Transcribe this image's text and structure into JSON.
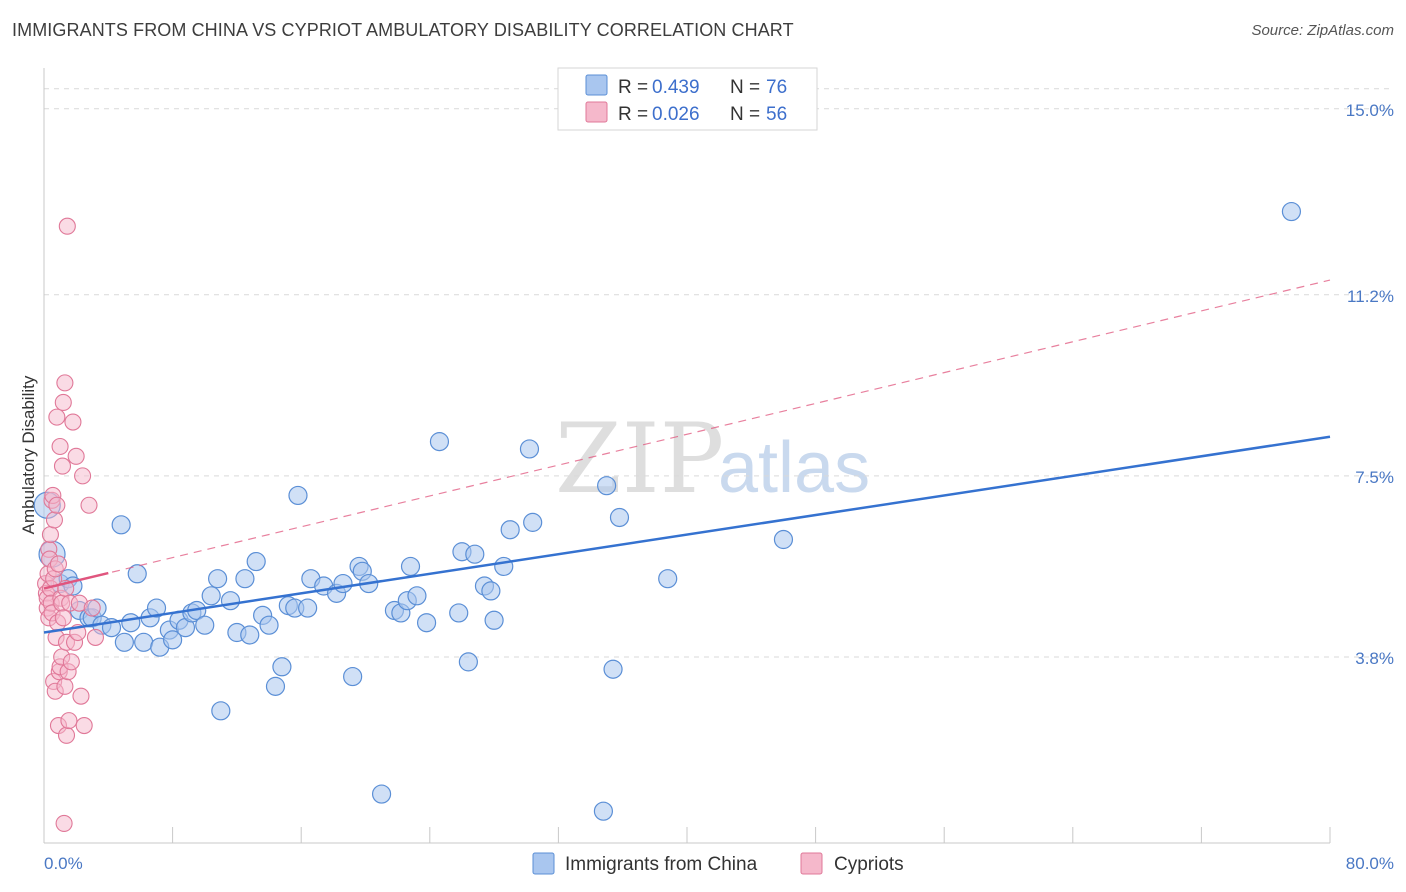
{
  "title": "IMMIGRANTS FROM CHINA VS CYPRIOT AMBULATORY DISABILITY CORRELATION CHART",
  "source": "Source: ZipAtlas.com",
  "colors": {
    "china_fill": "#a9c6ef",
    "china_stroke": "#5b8fd6",
    "china_line": "#3572d0",
    "cyp_fill": "#f5b8cb",
    "cyp_stroke": "#e07898",
    "cyp_line": "#e0557e",
    "grid": "#d9d9d9",
    "tick_text": "#4a78c4"
  },
  "chart_data": {
    "type": "scatter",
    "xlabel": "",
    "ylabel": "Ambulatory Disability",
    "xlim": [
      0,
      80
    ],
    "ylim": [
      0,
      15.5
    ],
    "x_tick_labels": [
      "0.0%",
      "80.0%"
    ],
    "y_ticks": [
      3.8,
      7.5,
      11.2,
      15.0
    ],
    "y_tick_labels": [
      "3.8%",
      "7.5%",
      "11.2%",
      "15.0%"
    ],
    "legend": [
      {
        "r_label": "R = ",
        "r_value": "0.439",
        "n_label": "N = ",
        "n_value": "76"
      },
      {
        "r_label": "R = ",
        "r_value": "0.026",
        "n_label": "N = ",
        "n_value": "56"
      }
    ],
    "watermark": {
      "zip": "ZIP",
      "atlas": "atlas"
    },
    "series": [
      {
        "name": "Immigrants from China",
        "trend": {
          "x0": 0,
          "y0": 4.3,
          "x1": 80,
          "y1": 8.3
        },
        "points": [
          [
            0.2,
            6.9
          ],
          [
            0.5,
            5.9
          ],
          [
            1.0,
            5.3
          ],
          [
            1.5,
            5.4
          ],
          [
            1.8,
            5.25
          ],
          [
            2.2,
            4.75
          ],
          [
            2.8,
            4.6
          ],
          [
            3.0,
            4.6
          ],
          [
            3.3,
            4.8
          ],
          [
            3.6,
            4.45
          ],
          [
            4.2,
            4.4
          ],
          [
            4.8,
            6.5
          ],
          [
            5.0,
            4.1
          ],
          [
            5.4,
            4.5
          ],
          [
            5.8,
            5.5
          ],
          [
            6.2,
            4.1
          ],
          [
            6.6,
            4.6
          ],
          [
            7.0,
            4.8
          ],
          [
            7.2,
            4.0
          ],
          [
            7.8,
            4.35
          ],
          [
            8.0,
            4.15
          ],
          [
            8.4,
            4.55
          ],
          [
            8.8,
            4.4
          ],
          [
            9.2,
            4.7
          ],
          [
            9.5,
            4.75
          ],
          [
            10.0,
            4.45
          ],
          [
            10.4,
            5.05
          ],
          [
            10.8,
            5.4
          ],
          [
            11.0,
            2.7
          ],
          [
            11.6,
            4.95
          ],
          [
            12.0,
            4.3
          ],
          [
            12.5,
            5.4
          ],
          [
            12.8,
            4.25
          ],
          [
            13.2,
            5.75
          ],
          [
            13.6,
            4.65
          ],
          [
            14.0,
            4.45
          ],
          [
            14.4,
            3.2
          ],
          [
            14.8,
            3.6
          ],
          [
            15.2,
            4.85
          ],
          [
            15.6,
            4.8
          ],
          [
            15.8,
            7.1
          ],
          [
            16.4,
            4.8
          ],
          [
            16.6,
            5.4
          ],
          [
            17.4,
            5.25
          ],
          [
            18.2,
            5.1
          ],
          [
            18.6,
            5.3
          ],
          [
            19.2,
            3.4
          ],
          [
            19.6,
            5.65
          ],
          [
            19.8,
            5.55
          ],
          [
            20.2,
            5.3
          ],
          [
            21.0,
            1.0
          ],
          [
            21.8,
            4.75
          ],
          [
            22.2,
            4.7
          ],
          [
            22.6,
            4.95
          ],
          [
            22.8,
            5.65
          ],
          [
            23.2,
            5.05
          ],
          [
            23.8,
            4.5
          ],
          [
            24.6,
            8.2
          ],
          [
            25.8,
            4.7
          ],
          [
            26.0,
            5.95
          ],
          [
            26.4,
            3.7
          ],
          [
            26.8,
            5.9
          ],
          [
            27.4,
            5.25
          ],
          [
            27.8,
            5.15
          ],
          [
            28.0,
            4.55
          ],
          [
            28.6,
            5.65
          ],
          [
            29.0,
            6.4
          ],
          [
            30.2,
            8.05
          ],
          [
            30.4,
            6.55
          ],
          [
            34.8,
            0.65
          ],
          [
            35.0,
            7.3
          ],
          [
            35.4,
            3.55
          ],
          [
            35.8,
            6.65
          ],
          [
            38.8,
            5.4
          ],
          [
            46.0,
            6.2
          ],
          [
            77.6,
            12.9
          ]
        ]
      },
      {
        "name": "Cypriots",
        "trend": {
          "x0": 0,
          "y0": 5.2,
          "x1": 80,
          "y1": 11.5
        },
        "trend_solid_until_x": 4.0,
        "points": [
          [
            0.1,
            5.3
          ],
          [
            0.15,
            5.1
          ],
          [
            0.2,
            4.8
          ],
          [
            0.2,
            5.0
          ],
          [
            0.25,
            5.5
          ],
          [
            0.3,
            6.0
          ],
          [
            0.3,
            4.6
          ],
          [
            0.35,
            5.8
          ],
          [
            0.4,
            6.3
          ],
          [
            0.4,
            5.2
          ],
          [
            0.45,
            4.9
          ],
          [
            0.5,
            7.0
          ],
          [
            0.5,
            4.7
          ],
          [
            0.55,
            7.1
          ],
          [
            0.6,
            5.4
          ],
          [
            0.6,
            3.3
          ],
          [
            0.65,
            6.6
          ],
          [
            0.7,
            5.6
          ],
          [
            0.7,
            3.1
          ],
          [
            0.75,
            4.2
          ],
          [
            0.8,
            6.9
          ],
          [
            0.8,
            8.7
          ],
          [
            0.85,
            4.5
          ],
          [
            0.9,
            5.7
          ],
          [
            0.9,
            2.4
          ],
          [
            0.95,
            3.5
          ],
          [
            1.0,
            8.1
          ],
          [
            1.0,
            3.6
          ],
          [
            1.05,
            5.0
          ],
          [
            1.1,
            3.8
          ],
          [
            1.1,
            4.9
          ],
          [
            1.15,
            7.7
          ],
          [
            1.2,
            9.0
          ],
          [
            1.2,
            4.6
          ],
          [
            1.25,
            0.4
          ],
          [
            1.3,
            9.4
          ],
          [
            1.3,
            3.2
          ],
          [
            1.35,
            5.2
          ],
          [
            1.4,
            4.1
          ],
          [
            1.4,
            2.2
          ],
          [
            1.45,
            12.6
          ],
          [
            1.5,
            3.5
          ],
          [
            1.55,
            2.5
          ],
          [
            1.6,
            4.9
          ],
          [
            1.7,
            3.7
          ],
          [
            1.8,
            8.6
          ],
          [
            1.9,
            4.1
          ],
          [
            2.0,
            7.9
          ],
          [
            2.1,
            4.3
          ],
          [
            2.2,
            4.9
          ],
          [
            2.3,
            3.0
          ],
          [
            2.4,
            7.5
          ],
          [
            2.5,
            2.4
          ],
          [
            2.8,
            6.9
          ],
          [
            3.0,
            4.8
          ],
          [
            3.2,
            4.2
          ]
        ]
      }
    ]
  }
}
